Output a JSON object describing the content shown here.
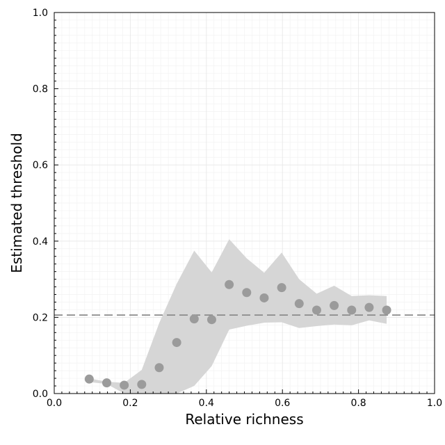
{
  "chart_data": {
    "type": "scatter",
    "xlabel": "Relative richness",
    "ylabel": "Estimated threshold",
    "xlim": [
      0,
      1
    ],
    "ylim": [
      0,
      1
    ],
    "x_ticks": [
      "0.0",
      "0.2",
      "0.4",
      "0.6",
      "0.8",
      "1.0"
    ],
    "y_ticks": [
      "0.0",
      "0.2",
      "0.4",
      "0.6",
      "0.8",
      "1.0"
    ],
    "grid": true,
    "legend": "none",
    "points": {
      "x": [
        0.092,
        0.138,
        0.184,
        0.23,
        0.276,
        0.322,
        0.368,
        0.414,
        0.46,
        0.506,
        0.552,
        0.598,
        0.644,
        0.69,
        0.736,
        0.782,
        0.828,
        0.874
      ],
      "y": [
        0.038,
        0.028,
        0.022,
        0.024,
        0.068,
        0.134,
        0.196,
        0.194,
        0.286,
        0.265,
        0.251,
        0.278,
        0.236,
        0.219,
        0.231,
        0.219,
        0.226,
        0.219
      ],
      "color": "#9b9b9b"
    },
    "band": {
      "x": [
        0.092,
        0.138,
        0.184,
        0.23,
        0.276,
        0.322,
        0.368,
        0.414,
        0.46,
        0.506,
        0.552,
        0.598,
        0.644,
        0.69,
        0.736,
        0.782,
        0.828,
        0.874
      ],
      "lower": [
        0.03,
        0.025,
        0.0,
        0.0,
        0.0,
        0.0,
        0.02,
        0.072,
        0.168,
        0.178,
        0.186,
        0.187,
        0.172,
        0.177,
        0.181,
        0.179,
        0.192,
        0.183
      ],
      "upper": [
        0.04,
        0.031,
        0.028,
        0.062,
        0.185,
        0.288,
        0.375,
        0.318,
        0.405,
        0.355,
        0.317,
        0.37,
        0.3,
        0.262,
        0.283,
        0.256,
        0.258,
        0.256
      ],
      "color": "#d6d6d6"
    },
    "reference_line": {
      "y": 0.206,
      "style": "dashed",
      "color": "#8a8a8a"
    }
  }
}
